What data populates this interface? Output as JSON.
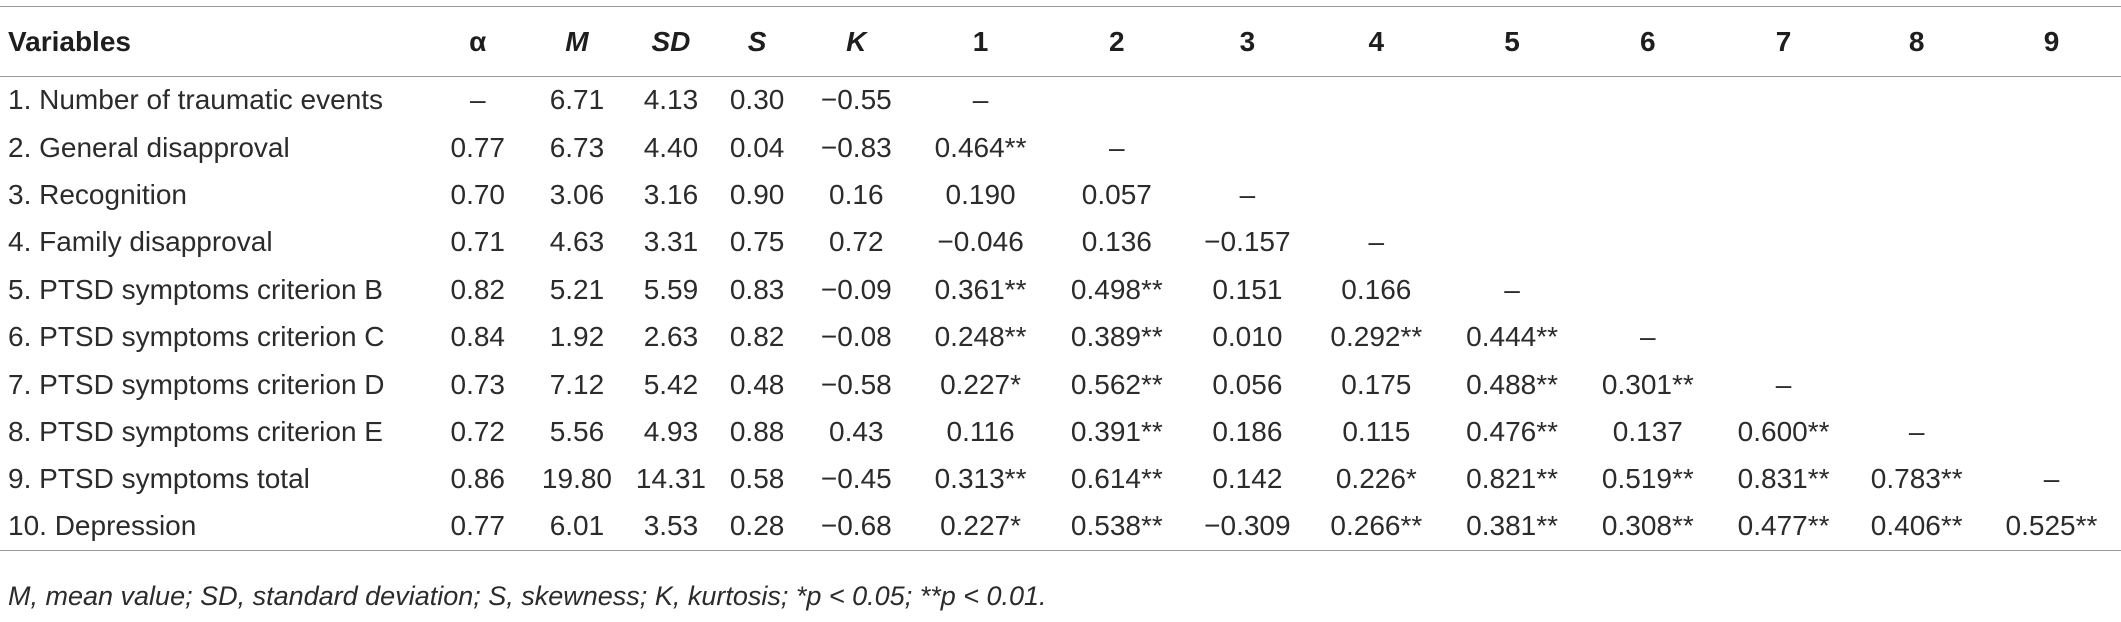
{
  "table": {
    "headers": [
      "Variables",
      "α",
      "M",
      "SD",
      "S",
      "K",
      "1",
      "2",
      "3",
      "4",
      "5",
      "6",
      "7",
      "8",
      "9"
    ],
    "rows": [
      [
        "1. Number of traumatic events",
        "–",
        "6.71",
        "4.13",
        "0.30",
        "−0.55",
        "–",
        "",
        "",
        "",
        "",
        "",
        "",
        "",
        ""
      ],
      [
        "2. General disapproval",
        "0.77",
        "6.73",
        "4.40",
        "0.04",
        "−0.83",
        "0.464**",
        "–",
        "",
        "",
        "",
        "",
        "",
        "",
        ""
      ],
      [
        "3. Recognition",
        "0.70",
        "3.06",
        "3.16",
        "0.90",
        "0.16",
        "0.190",
        "0.057",
        "–",
        "",
        "",
        "",
        "",
        "",
        ""
      ],
      [
        "4. Family disapproval",
        "0.71",
        "4.63",
        "3.31",
        "0.75",
        "0.72",
        "−0.046",
        "0.136",
        "−0.157",
        "–",
        "",
        "",
        "",
        "",
        ""
      ],
      [
        "5. PTSD symptoms criterion B",
        "0.82",
        "5.21",
        "5.59",
        "0.83",
        "−0.09",
        "0.361**",
        "0.498**",
        "0.151",
        "0.166",
        "–",
        "",
        "",
        "",
        ""
      ],
      [
        "6. PTSD symptoms criterion C",
        "0.84",
        "1.92",
        "2.63",
        "0.82",
        "−0.08",
        "0.248**",
        "0.389**",
        "0.010",
        "0.292**",
        "0.444**",
        "–",
        "",
        "",
        ""
      ],
      [
        "7. PTSD symptoms criterion D",
        "0.73",
        "7.12",
        "5.42",
        "0.48",
        "−0.58",
        "0.227*",
        "0.562**",
        "0.056",
        "0.175",
        "0.488**",
        "0.301**",
        "–",
        "",
        ""
      ],
      [
        "8. PTSD symptoms criterion E",
        "0.72",
        "5.56",
        "4.93",
        "0.88",
        "0.43",
        "0.116",
        "0.391**",
        "0.186",
        "0.115",
        "0.476**",
        "0.137",
        "0.600**",
        "–",
        ""
      ],
      [
        "9. PTSD symptoms total",
        "0.86",
        "19.80",
        "14.31",
        "0.58",
        "−0.45",
        "0.313**",
        "0.614**",
        "0.142",
        "0.226*",
        "0.821**",
        "0.519**",
        "0.831**",
        "0.783**",
        "–"
      ],
      [
        "10. Depression",
        "0.77",
        "6.01",
        "3.53",
        "0.28",
        "−0.68",
        "0.227*",
        "0.538**",
        "−0.309",
        "0.266**",
        "0.381**",
        "0.308**",
        "0.477**",
        "0.406**",
        "0.525**"
      ]
    ]
  },
  "note": "M, mean value; SD, standard deviation; S, skewness; K, kurtosis; *p < 0.05; **p < 0.01."
}
